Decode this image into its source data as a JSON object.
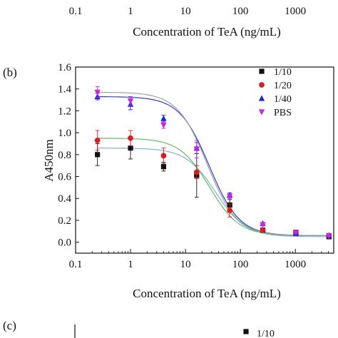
{
  "top_panel": {
    "x_ticks": [
      "0.1",
      "1",
      "10",
      "100",
      "1000"
    ],
    "xlabel": "Concentration of TeA (ng/mL)"
  },
  "chart_data": {
    "type": "scatter",
    "panel_label": "(b)",
    "xlabel": "Concentration of TeA (ng/mL)",
    "ylabel": "A450nm",
    "x_scale": "log",
    "xlim": [
      0.1,
      5000
    ],
    "ylim": [
      -0.1,
      1.6
    ],
    "x_ticks": [
      "0.1",
      "1",
      "10",
      "100",
      "1000"
    ],
    "y_ticks": [
      "0.0",
      "0.2",
      "0.4",
      "0.6",
      "0.8",
      "1.0",
      "1.2",
      "1.4",
      "1.6"
    ],
    "grid": false,
    "legend_position": "top-right",
    "x": [
      0.25,
      1,
      4,
      16,
      64,
      256,
      1024,
      4096
    ],
    "series": [
      {
        "name": "1/10",
        "color": "#111111",
        "curve_color": "#7fb0d8",
        "marker": "square",
        "values": [
          0.8,
          0.86,
          0.69,
          0.61,
          0.34,
          0.11,
          0.09,
          0.05
        ],
        "errors": [
          0.1,
          0.1,
          0.04,
          0.2,
          0.05,
          0.02,
          0.02,
          0.01
        ]
      },
      {
        "name": "1/20",
        "color": "#d42020",
        "curve_color": "#60c060",
        "marker": "circle",
        "values": [
          0.93,
          0.95,
          0.79,
          0.64,
          0.29,
          0.11,
          0.08,
          0.06
        ],
        "errors": [
          0.09,
          0.07,
          0.07,
          0.06,
          0.06,
          0.02,
          0.01,
          0.01
        ]
      },
      {
        "name": "1/40",
        "color": "#1a2ad0",
        "curve_color": "#3040c0",
        "marker": "triangle-up",
        "values": [
          1.33,
          1.26,
          1.13,
          0.86,
          0.43,
          0.17,
          0.08,
          0.06
        ],
        "errors": [
          0.03,
          0.05,
          0.03,
          0.05,
          0.02,
          0.01,
          0.01,
          0.01
        ]
      },
      {
        "name": "PBS",
        "color": "#d020e0",
        "curve_color": "#a0a0a0",
        "marker": "triangle-down",
        "values": [
          1.37,
          1.29,
          1.07,
          0.85,
          0.42,
          0.16,
          0.09,
          0.06
        ],
        "errors": [
          0.05,
          0.04,
          0.03,
          0.08,
          0.02,
          0.01,
          0.01,
          0.01
        ]
      }
    ]
  },
  "bottom_panel": {
    "panel_label": "(c)",
    "legend": [
      "1/10"
    ]
  }
}
